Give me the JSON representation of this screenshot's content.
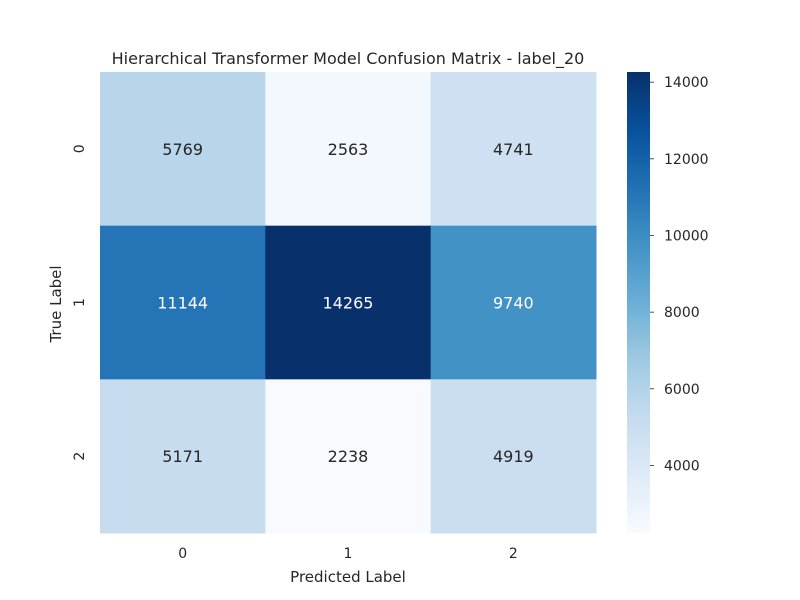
{
  "chart_data": {
    "type": "heatmap",
    "title": "Hierarchical Transformer Model Confusion Matrix - label_20",
    "xlabel": "Predicted Label",
    "ylabel": "True Label",
    "x_categories": [
      "0",
      "1",
      "2"
    ],
    "y_categories": [
      "0",
      "1",
      "2"
    ],
    "values": [
      [
        5769,
        2563,
        4741
      ],
      [
        11144,
        14265,
        9740
      ],
      [
        5171,
        2238,
        4919
      ]
    ],
    "colorbar": {
      "ticks": [
        4000,
        6000,
        8000,
        10000,
        12000,
        14000
      ],
      "min": 2238,
      "max": 14265
    },
    "colormap": "Blues",
    "grid": false
  }
}
